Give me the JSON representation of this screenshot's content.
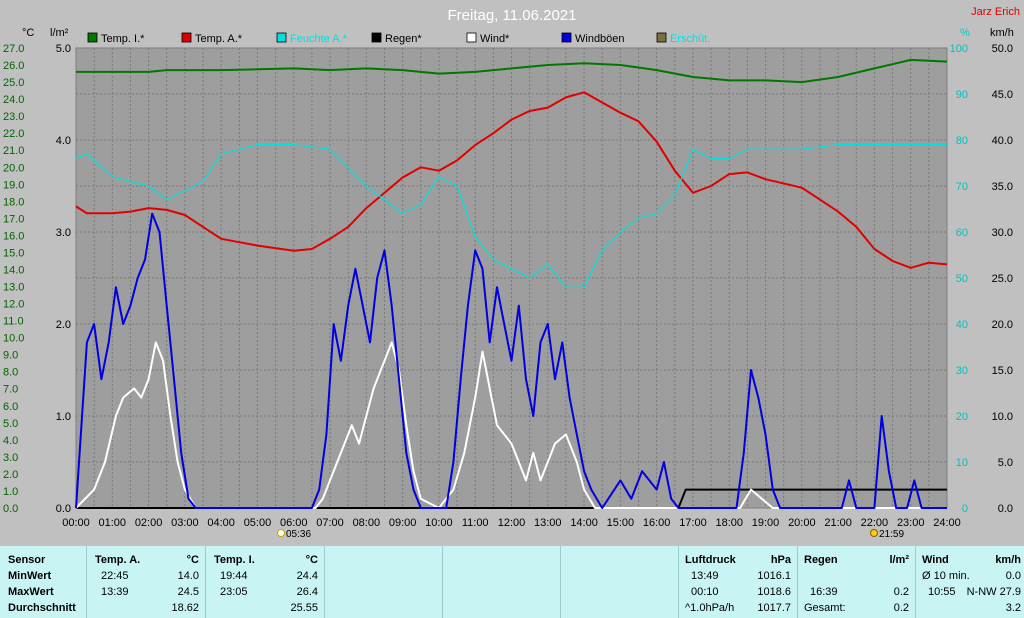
{
  "header": {
    "title": "Freitag, 11.06.2021",
    "author": "Jarz Erich"
  },
  "axes": {
    "left_temp_unit": "°C",
    "left_rain_unit": "l/m²",
    "right_pct_unit": "%",
    "right_wind_unit": "km/h",
    "temp_ticks": [
      "27.0",
      "26.0",
      "25.0",
      "24.0",
      "23.0",
      "22.0",
      "21.0",
      "20.0",
      "19.0",
      "18.0",
      "17.0",
      "16.0",
      "15.0",
      "14.0",
      "13.0",
      "12.0",
      "11.0",
      "10.0",
      "9.0",
      "8.0",
      "7.0",
      "6.0",
      "5.0",
      "4.0",
      "3.0",
      "2.0",
      "1.0",
      "0.0"
    ],
    "rain_ticks": [
      "5.0",
      "4.0",
      "3.0",
      "2.0",
      "1.0",
      "0.0"
    ],
    "pct_ticks": [
      "100",
      "90",
      "80",
      "70",
      "60",
      "50",
      "40",
      "30",
      "20",
      "10",
      "0"
    ],
    "wind_ticks": [
      "50.0",
      "45.0",
      "40.0",
      "35.0",
      "30.0",
      "25.0",
      "20.0",
      "15.0",
      "10.0",
      "5.0",
      "0.0"
    ],
    "time_ticks": [
      "00:00",
      "01:00",
      "02:00",
      "03:00",
      "04:00",
      "05:00",
      "06:00",
      "07:00",
      "08:00",
      "09:00",
      "10:00",
      "11:00",
      "12:00",
      "13:00",
      "14:00",
      "15:00",
      "16:00",
      "17:00",
      "18:00",
      "19:00",
      "20:00",
      "21:00",
      "22:00",
      "23:00",
      "24:00"
    ],
    "sunrise": "05:36",
    "sunset": "21:59"
  },
  "legend": [
    {
      "label": "Temp. I.*",
      "color": "#007800"
    },
    {
      "label": "Temp. A.*",
      "color": "#e00000"
    },
    {
      "label": "Feuchte A.*",
      "color": "#00e0e0"
    },
    {
      "label": "Regen*",
      "color": "#000000"
    },
    {
      "label": "Wind*",
      "color": "#ffffff"
    },
    {
      "label": "Windböen",
      "color": "#0000e0"
    },
    {
      "label": "Erschüt.",
      "color": "#7a7040"
    }
  ],
  "chart_data": {
    "type": "line",
    "x_unit": "hour",
    "xlim": [
      0,
      24
    ],
    "grid": true,
    "series": [
      {
        "name": "Temp. I.*",
        "axis": "temp",
        "color": "#007800",
        "points": [
          [
            0,
            25.6
          ],
          [
            1,
            25.6
          ],
          [
            2,
            25.6
          ],
          [
            2.5,
            25.7
          ],
          [
            3,
            25.7
          ],
          [
            4,
            25.7
          ],
          [
            5,
            25.75
          ],
          [
            6,
            25.8
          ],
          [
            7,
            25.7
          ],
          [
            8,
            25.8
          ],
          [
            9,
            25.7
          ],
          [
            10,
            25.5
          ],
          [
            11,
            25.6
          ],
          [
            12,
            25.8
          ],
          [
            13,
            26.0
          ],
          [
            14,
            26.1
          ],
          [
            15,
            26.0
          ],
          [
            16,
            25.7
          ],
          [
            17,
            25.3
          ],
          [
            18,
            25.1
          ],
          [
            19,
            25.1
          ],
          [
            20,
            25.0
          ],
          [
            21,
            25.3
          ],
          [
            22,
            25.8
          ],
          [
            23,
            26.3
          ],
          [
            24,
            26.2
          ]
        ]
      },
      {
        "name": "Temp. A.*",
        "axis": "temp",
        "color": "#e00000",
        "points": [
          [
            0,
            17.7
          ],
          [
            0.3,
            17.3
          ],
          [
            1,
            17.3
          ],
          [
            1.5,
            17.4
          ],
          [
            2,
            17.6
          ],
          [
            2.5,
            17.5
          ],
          [
            3,
            17.2
          ],
          [
            3.5,
            16.5
          ],
          [
            4,
            15.8
          ],
          [
            5,
            15.4
          ],
          [
            6,
            15.1
          ],
          [
            6.5,
            15.2
          ],
          [
            7,
            15.8
          ],
          [
            7.5,
            16.5
          ],
          [
            8,
            17.6
          ],
          [
            8.5,
            18.5
          ],
          [
            9,
            19.4
          ],
          [
            9.5,
            20.0
          ],
          [
            10,
            19.8
          ],
          [
            10.5,
            20.4
          ],
          [
            11,
            21.3
          ],
          [
            11.5,
            22.0
          ],
          [
            12,
            22.8
          ],
          [
            12.5,
            23.3
          ],
          [
            13,
            23.5
          ],
          [
            13.5,
            24.1
          ],
          [
            14,
            24.4
          ],
          [
            14.5,
            23.8
          ],
          [
            15,
            23.2
          ],
          [
            15.5,
            22.7
          ],
          [
            16,
            21.5
          ],
          [
            16.5,
            19.8
          ],
          [
            17,
            18.5
          ],
          [
            17.5,
            18.9
          ],
          [
            18,
            19.6
          ],
          [
            18.5,
            19.7
          ],
          [
            19,
            19.3
          ],
          [
            20,
            18.8
          ],
          [
            21,
            17.4
          ],
          [
            21.5,
            16.5
          ],
          [
            22,
            15.2
          ],
          [
            22.5,
            14.5
          ],
          [
            23,
            14.1
          ],
          [
            23.5,
            14.4
          ],
          [
            24,
            14.3
          ]
        ]
      },
      {
        "name": "Feuchte A.*",
        "axis": "pct",
        "color": "#00e0e0",
        "points": [
          [
            0,
            76
          ],
          [
            0.3,
            77
          ],
          [
            1,
            72
          ],
          [
            2,
            70
          ],
          [
            2.5,
            67
          ],
          [
            3,
            69
          ],
          [
            3.5,
            71
          ],
          [
            4,
            77
          ],
          [
            5,
            79
          ],
          [
            6,
            79
          ],
          [
            7,
            78
          ],
          [
            7.5,
            74
          ],
          [
            8,
            70
          ],
          [
            8.5,
            67
          ],
          [
            9,
            64
          ],
          [
            9.5,
            66
          ],
          [
            10,
            72
          ],
          [
            10.5,
            70
          ],
          [
            11,
            59
          ],
          [
            11.5,
            54
          ],
          [
            12,
            52
          ],
          [
            12.5,
            50
          ],
          [
            13,
            53
          ],
          [
            13.5,
            48
          ],
          [
            14,
            48
          ],
          [
            14.5,
            56
          ],
          [
            15,
            60
          ],
          [
            15.5,
            63
          ],
          [
            16,
            64
          ],
          [
            16.5,
            68
          ],
          [
            17,
            78
          ],
          [
            17.5,
            76
          ],
          [
            18,
            76
          ],
          [
            18.5,
            78
          ],
          [
            19,
            78
          ],
          [
            20,
            78
          ],
          [
            21,
            79
          ],
          [
            22,
            79
          ],
          [
            23,
            79
          ],
          [
            24,
            79
          ]
        ]
      },
      {
        "name": "Regen*",
        "axis": "rain",
        "color": "#000000",
        "points": [
          [
            0,
            0
          ],
          [
            16.6,
            0
          ],
          [
            16.8,
            0.2
          ],
          [
            17.5,
            0.2
          ],
          [
            24,
            0.2
          ]
        ]
      },
      {
        "name": "Wind*",
        "axis": "wind",
        "color": "#ffffff",
        "points": [
          [
            0,
            0
          ],
          [
            0.5,
            2
          ],
          [
            0.8,
            5
          ],
          [
            1.1,
            10
          ],
          [
            1.3,
            12
          ],
          [
            1.6,
            13
          ],
          [
            1.8,
            12
          ],
          [
            2,
            14
          ],
          [
            2.2,
            18
          ],
          [
            2.4,
            16
          ],
          [
            2.6,
            10
          ],
          [
            2.8,
            5
          ],
          [
            3,
            2
          ],
          [
            3.3,
            0
          ],
          [
            6.6,
            0
          ],
          [
            6.8,
            1
          ],
          [
            7,
            3
          ],
          [
            7.3,
            6
          ],
          [
            7.6,
            9
          ],
          [
            7.8,
            7
          ],
          [
            8,
            10
          ],
          [
            8.2,
            13
          ],
          [
            8.5,
            16
          ],
          [
            8.7,
            18
          ],
          [
            8.9,
            15
          ],
          [
            9.1,
            9
          ],
          [
            9.3,
            4
          ],
          [
            9.5,
            1
          ],
          [
            10,
            0
          ],
          [
            10.4,
            2
          ],
          [
            10.7,
            6
          ],
          [
            11,
            12
          ],
          [
            11.2,
            17
          ],
          [
            11.4,
            13
          ],
          [
            11.6,
            9
          ],
          [
            11.8,
            8
          ],
          [
            12,
            7
          ],
          [
            12.2,
            5
          ],
          [
            12.4,
            3
          ],
          [
            12.6,
            6
          ],
          [
            12.8,
            3
          ],
          [
            13,
            5
          ],
          [
            13.2,
            7
          ],
          [
            13.5,
            8
          ],
          [
            13.8,
            5
          ],
          [
            14,
            2
          ],
          [
            14.3,
            0
          ],
          [
            18.3,
            0
          ],
          [
            18.6,
            2
          ],
          [
            18.9,
            1
          ],
          [
            19.2,
            0
          ],
          [
            24,
            0
          ]
        ]
      },
      {
        "name": "Windböen",
        "axis": "wind",
        "color": "#0000e0",
        "points": [
          [
            0,
            0
          ],
          [
            0.3,
            18
          ],
          [
            0.5,
            20
          ],
          [
            0.7,
            14
          ],
          [
            0.9,
            18
          ],
          [
            1.1,
            24
          ],
          [
            1.3,
            20
          ],
          [
            1.5,
            22
          ],
          [
            1.7,
            25
          ],
          [
            1.9,
            27
          ],
          [
            2.1,
            32
          ],
          [
            2.3,
            30
          ],
          [
            2.5,
            22
          ],
          [
            2.7,
            14
          ],
          [
            2.9,
            6
          ],
          [
            3.1,
            1
          ],
          [
            3.3,
            0
          ],
          [
            6.5,
            0
          ],
          [
            6.7,
            2
          ],
          [
            6.9,
            8
          ],
          [
            7.1,
            20
          ],
          [
            7.3,
            16
          ],
          [
            7.5,
            22
          ],
          [
            7.7,
            26
          ],
          [
            7.9,
            22
          ],
          [
            8.1,
            18
          ],
          [
            8.3,
            25
          ],
          [
            8.5,
            28
          ],
          [
            8.7,
            22
          ],
          [
            8.9,
            14
          ],
          [
            9.1,
            6
          ],
          [
            9.3,
            2
          ],
          [
            9.5,
            0
          ],
          [
            10.2,
            0
          ],
          [
            10.4,
            5
          ],
          [
            10.6,
            14
          ],
          [
            10.8,
            22
          ],
          [
            11,
            28
          ],
          [
            11.2,
            26
          ],
          [
            11.4,
            18
          ],
          [
            11.6,
            24
          ],
          [
            11.8,
            20
          ],
          [
            12,
            16
          ],
          [
            12.2,
            22
          ],
          [
            12.4,
            14
          ],
          [
            12.6,
            10
          ],
          [
            12.8,
            18
          ],
          [
            13,
            20
          ],
          [
            13.2,
            14
          ],
          [
            13.4,
            18
          ],
          [
            13.6,
            12
          ],
          [
            13.8,
            8
          ],
          [
            14,
            4
          ],
          [
            14.2,
            2
          ],
          [
            14.5,
            0
          ],
          [
            15,
            3
          ],
          [
            15.3,
            1
          ],
          [
            15.6,
            4
          ],
          [
            16,
            2
          ],
          [
            16.2,
            5
          ],
          [
            16.4,
            1
          ],
          [
            16.6,
            0
          ],
          [
            18.2,
            0
          ],
          [
            18.4,
            6
          ],
          [
            18.6,
            15
          ],
          [
            18.8,
            12
          ],
          [
            19,
            8
          ],
          [
            19.2,
            2
          ],
          [
            19.4,
            0
          ],
          [
            21.1,
            0
          ],
          [
            21.3,
            3
          ],
          [
            21.5,
            0
          ],
          [
            22,
            0
          ],
          [
            22.2,
            10
          ],
          [
            22.4,
            4
          ],
          [
            22.6,
            0
          ],
          [
            22.9,
            0
          ],
          [
            23.1,
            3
          ],
          [
            23.3,
            0
          ],
          [
            24,
            0
          ]
        ]
      }
    ],
    "ranges": {
      "temp": [
        0,
        27
      ],
      "rain": [
        0,
        5
      ],
      "pct": [
        0,
        100
      ],
      "wind": [
        0,
        50
      ]
    }
  },
  "stats": {
    "temp_a": {
      "header": "Temp. A.",
      "unit": "°C",
      "min_time": "22:45",
      "min": "14.0",
      "max_time": "13:39",
      "max": "24.5",
      "avg": "18.62"
    },
    "temp_i": {
      "header": "Temp. I.",
      "unit": "°C",
      "min_time": "19:44",
      "min": "24.4",
      "max_time": "23:05",
      "max": "26.4",
      "avg": "25.55"
    },
    "row_labels": {
      "sensor": "Sensor",
      "min": "MinWert",
      "max": "MaxWert",
      "avg": "Durchschnitt"
    },
    "luftdruck": {
      "header": "Luftdruck",
      "unit": "hPa",
      "min_time": "13:49",
      "min": "1016.1",
      "max_time": "00:10",
      "max": "1018.6",
      "avg_label": "^1.0hPa/h",
      "avg": "1017.7"
    },
    "regen": {
      "header": "Regen",
      "unit": "l/m²",
      "max_time": "16:39",
      "max": "0.2",
      "total_label": "Gesamt:",
      "total": "0.2"
    },
    "wind": {
      "header": "Wind",
      "unit": "km/h",
      "min_label": "Ø 10 min.",
      "min": "0.0",
      "max_time": "10:55",
      "max": "N-NW 27.9",
      "avg": "3.2"
    }
  }
}
